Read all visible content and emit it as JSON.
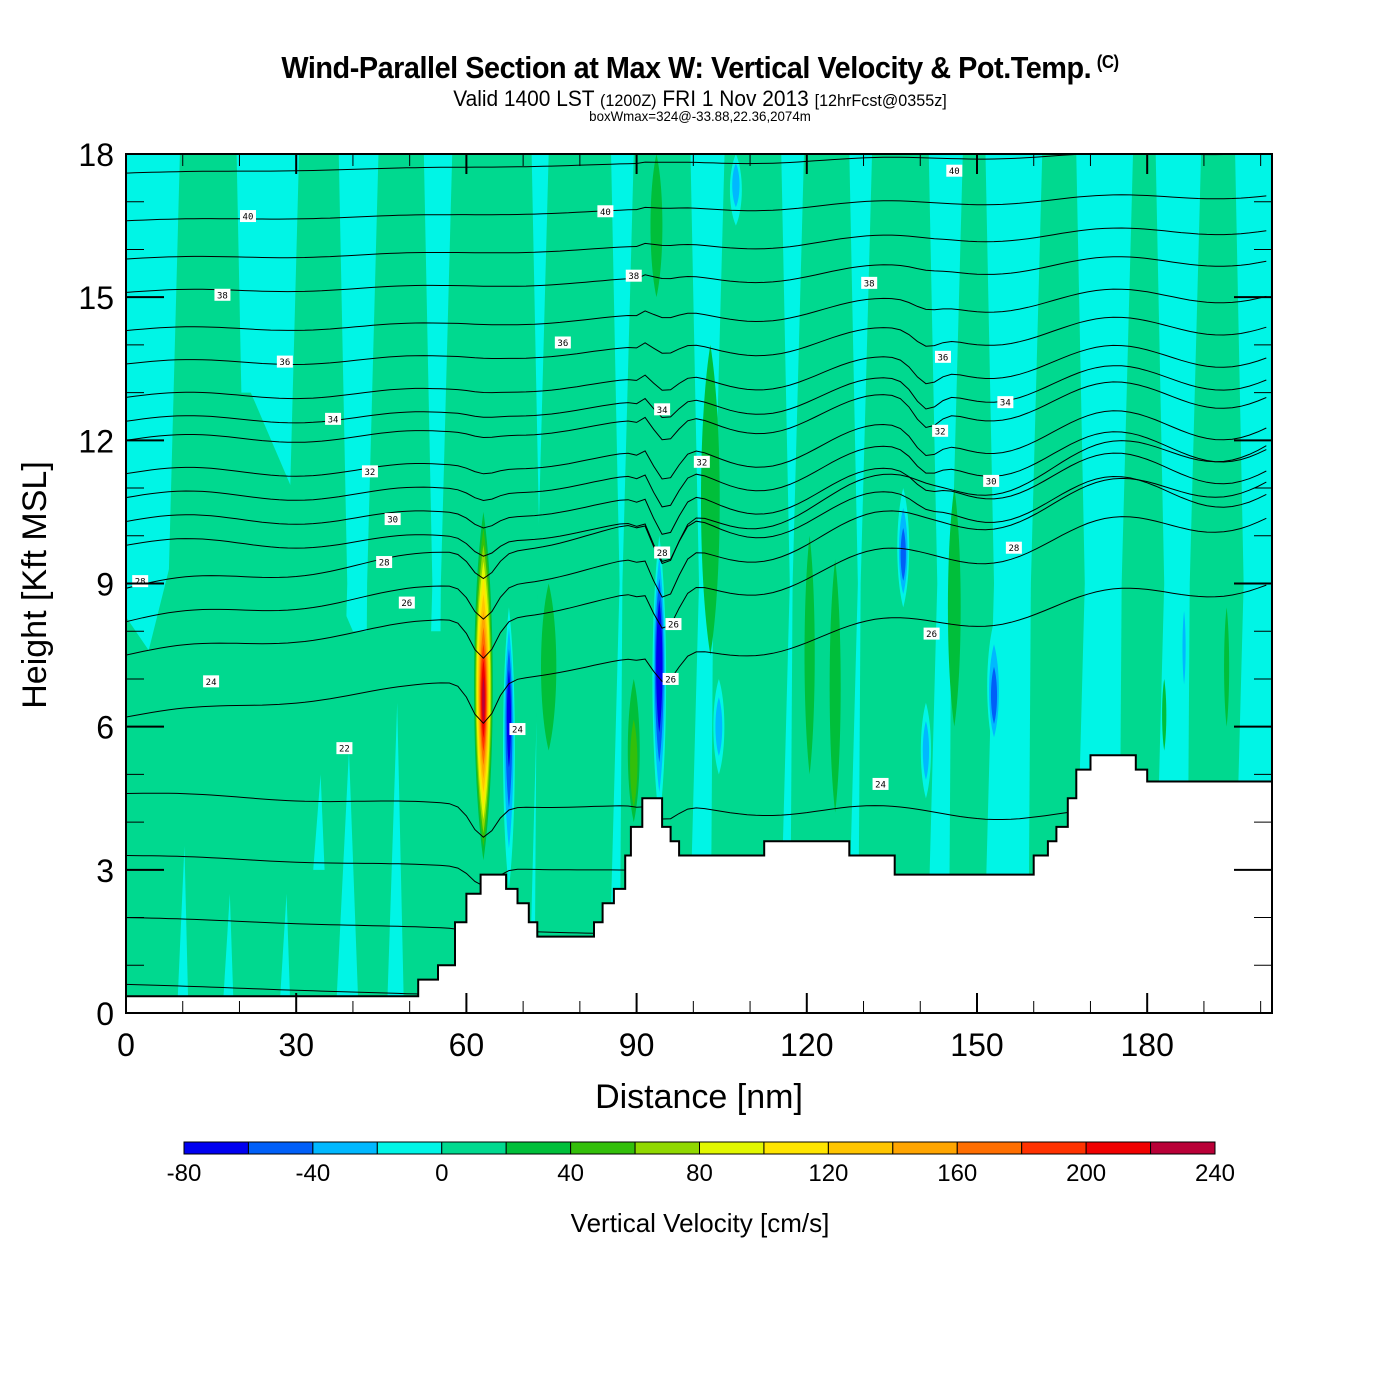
{
  "header": {
    "title": "Wind-Parallel Section at Max W: Vertical Velocity & Pot.Temp.",
    "copyright": "(C)",
    "valid_prefix": "Valid 1400 LST",
    "valid_utc": "(1200Z)",
    "valid_date": "FRI 1 Nov 2013",
    "forecast": "[12hrFcst@0355z]",
    "box_info": "boxWmax=324@-33.88,22.36,2074m"
  },
  "chart_data": {
    "type": "heatmap",
    "title": "Wind-Parallel Section at Max W: Vertical Velocity & Pot.Temp.",
    "xlabel": "Distance [nm]",
    "ylabel": "Height [Kft MSL]",
    "xlim": [
      0,
      202
    ],
    "ylim": [
      0,
      18
    ],
    "x_ticks": [
      0,
      30,
      60,
      90,
      120,
      150,
      180
    ],
    "x_tick_labels": [
      "0",
      "30",
      "60",
      "90",
      "120",
      "150",
      "180"
    ],
    "x_minor_step": 10,
    "y_ticks": [
      0,
      3,
      6,
      9,
      12,
      15,
      18
    ],
    "y_tick_labels": [
      "0",
      "3",
      "6",
      "9",
      "12",
      "15",
      "18"
    ],
    "y_minor_step": 1,
    "colorbar": {
      "title": "Vertical Velocity [cm/s]",
      "levels": [
        -80,
        -60,
        -40,
        -20,
        0,
        20,
        40,
        60,
        80,
        100,
        120,
        140,
        160,
        180,
        200,
        220,
        240
      ],
      "tick_values": [
        -80,
        -40,
        0,
        40,
        80,
        120,
        160,
        200,
        240
      ],
      "tick_labels": [
        "-80",
        "-40",
        "0",
        "40",
        "80",
        "120",
        "160",
        "200",
        "240"
      ],
      "colors": [
        "#0000f0",
        "#005ff8",
        "#00b8ff",
        "#00f5e6",
        "#00d98f",
        "#00bf3a",
        "#33bf0a",
        "#90d800",
        "#e2f700",
        "#ffe500",
        "#ffc500",
        "#ffa500",
        "#ff6e00",
        "#ff3200",
        "#f00000",
        "#b90037"
      ],
      "placement": "bottom"
    },
    "wind_speed_features": [
      {
        "name": "main updraft",
        "x_center": 63,
        "x_halfwidth": 2.2,
        "y_bottom": 3.2,
        "y_top": 10.5,
        "peak": 220,
        "peak_height": 6.5
      },
      {
        "name": "downdraft west",
        "x_center": 67.5,
        "x_halfwidth": 1.4,
        "y_bottom": 2.6,
        "y_top": 8.5,
        "peak": -60,
        "peak_height": 6.5
      },
      {
        "name": "downdraft east",
        "x_center": 94,
        "x_halfwidth": 1.6,
        "y_bottom": 4.0,
        "y_top": 10.0,
        "peak": -80,
        "peak_height": 7.5
      },
      {
        "name": "downdraft 138",
        "x_center": 137,
        "x_halfwidth": 1.4,
        "y_bottom": 8.5,
        "y_top": 11.0,
        "peak": -40,
        "peak_height": 9.5
      },
      {
        "name": "downdraft 153",
        "x_center": 153,
        "x_halfwidth": 1.6,
        "y_bottom": 5.5,
        "y_top": 8.2,
        "peak": -40,
        "peak_height": 6.5
      },
      {
        "name": "downdraft 105",
        "x_center": 104.5,
        "x_halfwidth": 1.3,
        "y_bottom": 5.0,
        "y_top": 7.0,
        "peak": -30,
        "peak_height": 6.0
      },
      {
        "name": "downdraft 140 low",
        "x_center": 141,
        "x_halfwidth": 1.2,
        "y_bottom": 4.5,
        "y_top": 6.5,
        "peak": -30,
        "peak_height": 5.5
      },
      {
        "name": "downdraft 187",
        "x_center": 186.5,
        "x_halfwidth": 0.6,
        "y_bottom": 6.5,
        "y_top": 9.0,
        "peak": -30,
        "peak_height": 7.5
      },
      {
        "name": "downdraft top 107",
        "x_center": 107.5,
        "x_halfwidth": 1.4,
        "y_bottom": 16.5,
        "y_top": 18,
        "peak": -30,
        "peak_height": 17.5
      },
      {
        "name": "updraft 104",
        "x_center": 103,
        "x_halfwidth": 2.2,
        "y_bottom": 7.5,
        "y_top": 14.0,
        "peak": 30,
        "peak_height": 11.0
      },
      {
        "name": "updraft 124",
        "x_center": 125,
        "x_halfwidth": 1.3,
        "y_bottom": 4.2,
        "y_top": 9.5,
        "peak": 30,
        "peak_height": 7.0
      },
      {
        "name": "updraft 121",
        "x_center": 120.5,
        "x_halfwidth": 1.2,
        "y_bottom": 5.0,
        "y_top": 10.0,
        "peak": 30,
        "peak_height": 7.5
      },
      {
        "name": "updraft 145",
        "x_center": 146,
        "x_halfwidth": 1.5,
        "y_bottom": 6.0,
        "y_top": 11.0,
        "peak": 30,
        "peak_height": 8.5
      },
      {
        "name": "updraft 88",
        "x_center": 89.5,
        "x_halfwidth": 1.4,
        "y_bottom": 4.0,
        "y_top": 7.0,
        "peak": 50,
        "peak_height": 4.8
      },
      {
        "name": "updraft 92 top",
        "x_center": 93.5,
        "x_halfwidth": 1.4,
        "y_bottom": 15.0,
        "y_top": 18,
        "peak": 30,
        "peak_height": 17.0
      },
      {
        "name": "updraft 74",
        "x_center": 74.5,
        "x_halfwidth": 1.8,
        "y_bottom": 5.5,
        "y_top": 9.0,
        "peak": 30,
        "peak_height": 7.0
      },
      {
        "name": "updraft 194",
        "x_center": 194,
        "x_halfwidth": 0.6,
        "y_bottom": 6.0,
        "y_top": 8.5,
        "peak": 30,
        "peak_height": 7.0
      },
      {
        "name": "updraft 183",
        "x_center": 183,
        "x_halfwidth": 0.5,
        "y_bottom": 5.5,
        "y_top": 7.0,
        "peak": 30,
        "peak_height": 6.2
      }
    ],
    "green_bands_nm": [
      [
        8,
        20
      ],
      [
        29,
        38
      ],
      [
        43,
        53
      ],
      [
        56,
        72
      ],
      [
        73,
        86
      ],
      [
        88,
        100
      ],
      [
        104,
        116
      ],
      [
        118,
        128
      ],
      [
        130,
        142
      ],
      [
        146,
        152
      ],
      [
        160,
        168
      ],
      [
        176,
        182
      ],
      [
        188,
        196
      ]
    ],
    "terrain": {
      "x": [
        0,
        51.5,
        51.5,
        55,
        55,
        58,
        58,
        60,
        60,
        62.5,
        62.5,
        67,
        67,
        69,
        69,
        71,
        71,
        72.5,
        72.5,
        82.5,
        82.5,
        84,
        84,
        86,
        86,
        88,
        88,
        89,
        89,
        91,
        91,
        94.5,
        94.5,
        96,
        96,
        97.5,
        97.5,
        112.5,
        112.5,
        127.5,
        127.5,
        135.5,
        135.5,
        160,
        160,
        162.5,
        162.5,
        164,
        164,
        166,
        166,
        167.5,
        167.5,
        170,
        170,
        178,
        178,
        180,
        180,
        202
      ],
      "y": [
        0.35,
        0.35,
        0.7,
        0.7,
        1.0,
        1.0,
        1.9,
        1.9,
        2.5,
        2.5,
        2.9,
        2.9,
        2.6,
        2.6,
        2.3,
        2.3,
        1.9,
        1.9,
        1.6,
        1.6,
        1.9,
        1.9,
        2.3,
        2.3,
        2.6,
        2.6,
        3.3,
        3.3,
        3.9,
        3.9,
        4.5,
        4.5,
        3.9,
        3.9,
        3.6,
        3.6,
        3.3,
        3.3,
        3.6,
        3.6,
        3.3,
        3.3,
        2.9,
        2.9,
        3.3,
        3.3,
        3.6,
        3.6,
        3.9,
        3.9,
        4.5,
        4.5,
        5.1,
        5.1,
        5.4,
        5.4,
        5.1,
        5.1,
        4.85,
        4.85
      ]
    },
    "contour_labels": [
      {
        "text": "40",
        "x": 21.5,
        "y": 16.7
      },
      {
        "text": "40",
        "x": 84.5,
        "y": 16.8
      },
      {
        "text": "40",
        "x": 146,
        "y": 17.65
      },
      {
        "text": "38",
        "x": 17,
        "y": 15.05
      },
      {
        "text": "38",
        "x": 89.5,
        "y": 15.45
      },
      {
        "text": "38",
        "x": 131,
        "y": 15.3
      },
      {
        "text": "36",
        "x": 28,
        "y": 13.65
      },
      {
        "text": "36",
        "x": 77,
        "y": 14.05
      },
      {
        "text": "36",
        "x": 144,
        "y": 13.75
      },
      {
        "text": "34",
        "x": 36.5,
        "y": 12.45
      },
      {
        "text": "34",
        "x": 94.5,
        "y": 12.65
      },
      {
        "text": "34",
        "x": 155,
        "y": 12.8
      },
      {
        "text": "32",
        "x": 43,
        "y": 11.35
      },
      {
        "text": "32",
        "x": 101.5,
        "y": 11.55
      },
      {
        "text": "32",
        "x": 143.5,
        "y": 12.2
      },
      {
        "text": "30",
        "x": 47,
        "y": 10.35
      },
      {
        "text": "30",
        "x": 152.5,
        "y": 11.15
      },
      {
        "text": "28",
        "x": 2.5,
        "y": 9.05
      },
      {
        "text": "28",
        "x": 45.5,
        "y": 9.45
      },
      {
        "text": "28",
        "x": 94.5,
        "y": 9.65
      },
      {
        "text": "28",
        "x": 156.5,
        "y": 9.75
      },
      {
        "text": "26",
        "x": 49.5,
        "y": 8.6
      },
      {
        "text": "26",
        "x": 96.5,
        "y": 8.15
      },
      {
        "text": "26",
        "x": 142,
        "y": 7.95
      },
      {
        "text": "26",
        "x": 96,
        "y": 7.0
      },
      {
        "text": "24",
        "x": 15,
        "y": 6.95
      },
      {
        "text": "24",
        "x": 69,
        "y": 5.95
      },
      {
        "text": "24",
        "x": 133,
        "y": 4.8
      },
      {
        "text": "22",
        "x": 38.5,
        "y": 5.55
      }
    ],
    "theta_levels": [
      20,
      21,
      22,
      23,
      24,
      25,
      26,
      27,
      28,
      29,
      30,
      31,
      32,
      33,
      34,
      35,
      36,
      37,
      38,
      39,
      40,
      41
    ]
  }
}
